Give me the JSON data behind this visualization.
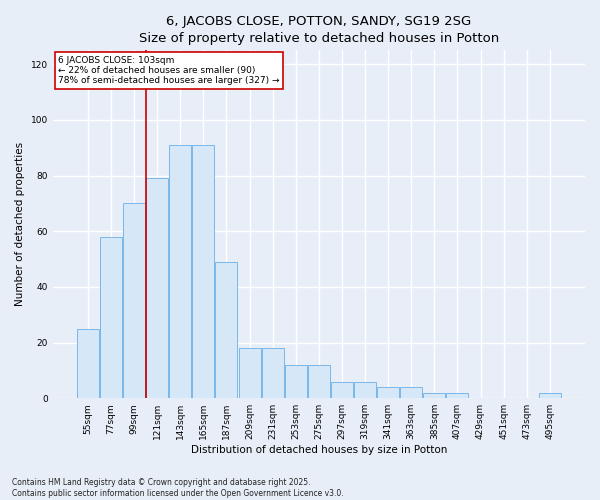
{
  "title": "6, JACOBS CLOSE, POTTON, SANDY, SG19 2SG",
  "subtitle": "Size of property relative to detached houses in Potton",
  "xlabel": "Distribution of detached houses by size in Potton",
  "ylabel": "Number of detached properties",
  "categories": [
    "55sqm",
    "77sqm",
    "99sqm",
    "121sqm",
    "143sqm",
    "165sqm",
    "187sqm",
    "209sqm",
    "231sqm",
    "253sqm",
    "275sqm",
    "297sqm",
    "319sqm",
    "341sqm",
    "363sqm",
    "385sqm",
    "407sqm",
    "429sqm",
    "451sqm",
    "473sqm",
    "495sqm"
  ],
  "values": [
    25,
    58,
    70,
    79,
    91,
    91,
    49,
    18,
    18,
    12,
    12,
    6,
    6,
    4,
    4,
    2,
    2,
    0,
    0,
    0,
    2
  ],
  "bar_color": "#d6e8f7",
  "bar_edge_color": "#7ab8e8",
  "vline_color": "#cc0000",
  "vline_x_index": 2.5,
  "annotation_text": "6 JACOBS CLOSE: 103sqm\n← 22% of detached houses are smaller (90)\n78% of semi-detached houses are larger (327) →",
  "annotation_box_facecolor": "white",
  "annotation_box_edgecolor": "#cc0000",
  "ylim": [
    0,
    125
  ],
  "yticks": [
    0,
    20,
    40,
    60,
    80,
    100,
    120
  ],
  "background_color": "#e8eef8",
  "grid_color": "white",
  "footnote": "Contains HM Land Registry data © Crown copyright and database right 2025.\nContains public sector information licensed under the Open Government Licence v3.0.",
  "title_fontsize": 9.5,
  "label_fontsize": 7.5,
  "tick_fontsize": 6.5,
  "annotation_fontsize": 6.5,
  "footnote_fontsize": 5.5
}
